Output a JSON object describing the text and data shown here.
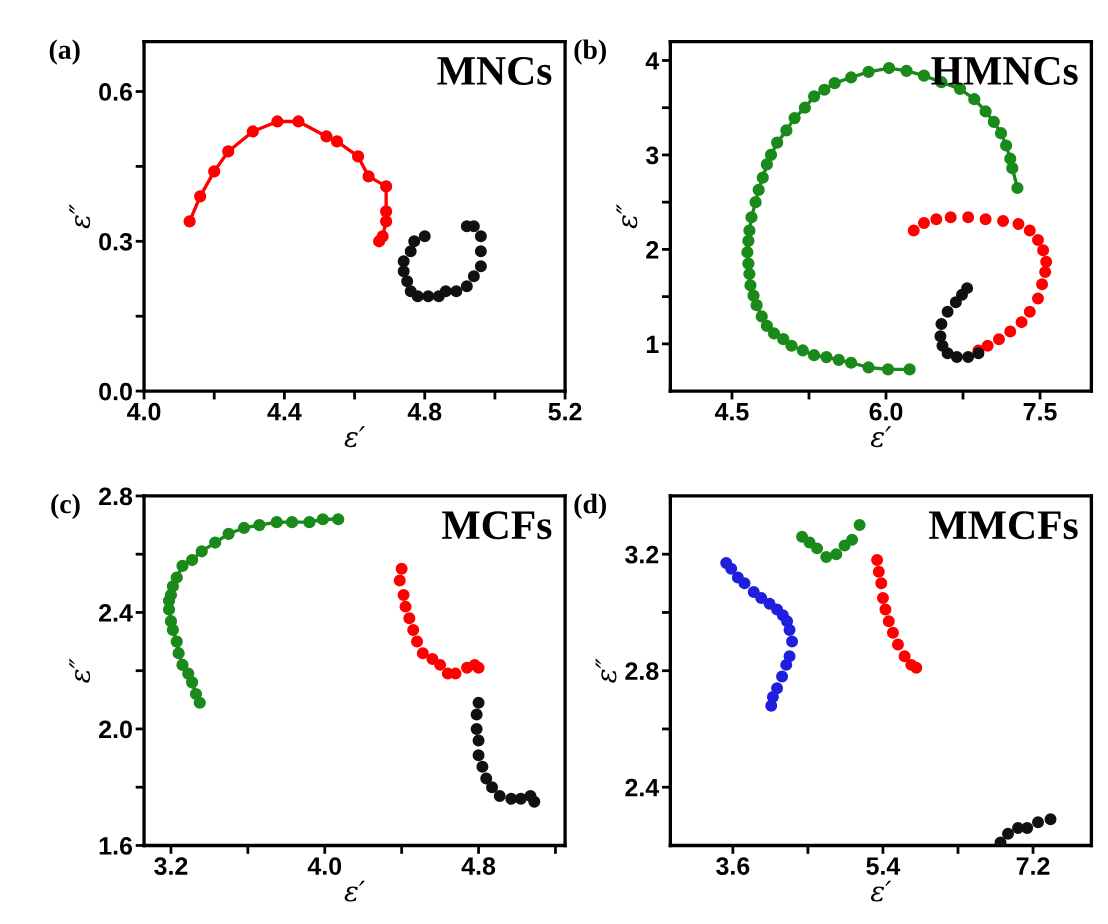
{
  "chart_data": [
    {
      "type": "line",
      "title": "MNCs",
      "annotations": [
        "(a)"
      ],
      "xlabel": "ε′",
      "ylabel": "ε″",
      "marker": "circle",
      "line_style": "solid",
      "grid": false,
      "legend": false,
      "xlim": [
        4.0,
        5.2
      ],
      "ylim": [
        0.0,
        0.7
      ],
      "xticks": [
        {
          "value": 4.0,
          "label": "4.0"
        },
        {
          "value": 4.2,
          "label": null
        },
        {
          "value": 4.4,
          "label": "4.4"
        },
        {
          "value": 4.6,
          "label": null
        },
        {
          "value": 4.8,
          "label": "4.8"
        },
        {
          "value": 5.0,
          "label": null
        },
        {
          "value": 5.2,
          "label": "5.2"
        }
      ],
      "yticks": [
        {
          "value": 0.0,
          "label": "0.0"
        },
        {
          "value": 0.15,
          "label": null
        },
        {
          "value": 0.3,
          "label": "0.3"
        },
        {
          "value": 0.45,
          "label": null
        },
        {
          "value": 0.6,
          "label": "0.6"
        }
      ],
      "series": [
        {
          "color": "#ff0000",
          "x": [
            4.13,
            4.16,
            4.2,
            4.24,
            4.31,
            4.38,
            4.44,
            4.52,
            4.55,
            4.61,
            4.64,
            4.69,
            4.69,
            4.69,
            4.68,
            4.67
          ],
          "values": [
            0.34,
            0.39,
            0.44,
            0.48,
            0.52,
            0.54,
            0.54,
            0.51,
            0.5,
            0.47,
            0.43,
            0.41,
            0.36,
            0.34,
            0.31,
            0.3
          ]
        },
        {
          "type": "scatter",
          "color": "#111111",
          "x": [
            4.8,
            4.77,
            4.76,
            4.74,
            4.74,
            4.75,
            4.76,
            4.78,
            4.81,
            4.84,
            4.86,
            4.89,
            4.92,
            4.94,
            4.96,
            4.96,
            4.96,
            4.94,
            4.92
          ],
          "values": [
            0.31,
            0.3,
            0.28,
            0.26,
            0.24,
            0.22,
            0.2,
            0.19,
            0.19,
            0.19,
            0.2,
            0.2,
            0.21,
            0.23,
            0.25,
            0.28,
            0.31,
            0.33,
            0.33
          ]
        }
      ]
    },
    {
      "type": "line",
      "title": "HMNCs",
      "annotations": [
        "(b)"
      ],
      "xlabel": "ε′",
      "ylabel": "ε″",
      "marker": "circle",
      "line_style": "solid",
      "grid": false,
      "legend": false,
      "xlim": [
        3.9,
        8.0
      ],
      "ylim": [
        0.5,
        4.2
      ],
      "xticks": [
        {
          "value": 4.5,
          "label": "4.5"
        },
        {
          "value": 5.25,
          "label": null
        },
        {
          "value": 6.0,
          "label": "6.0"
        },
        {
          "value": 6.75,
          "label": null
        },
        {
          "value": 7.5,
          "label": "7.5"
        }
      ],
      "yticks": [
        {
          "value": 1,
          "label": "1"
        },
        {
          "value": 1.5,
          "label": null
        },
        {
          "value": 2,
          "label": "2"
        },
        {
          "value": 2.5,
          "label": null
        },
        {
          "value": 3,
          "label": "3"
        },
        {
          "value": 3.5,
          "label": null
        },
        {
          "value": 4,
          "label": "4"
        }
      ],
      "series": [
        {
          "color": "#1a8a1a",
          "x": [
            6.23,
            6.02,
            5.83,
            5.66,
            5.54,
            5.42,
            5.3,
            5.19,
            5.08,
            5.0,
            4.91,
            4.84,
            4.79,
            4.74,
            4.71,
            4.68,
            4.67,
            4.66,
            4.65,
            4.66,
            4.67,
            4.69,
            4.73,
            4.76,
            4.8,
            4.84,
            4.88,
            4.94,
            5.03,
            5.11,
            5.21,
            5.3,
            5.4,
            5.5,
            5.66,
            5.83,
            6.03,
            6.2,
            6.37,
            6.54,
            6.72,
            6.86,
            6.97,
            7.05,
            7.12,
            7.17,
            7.21,
            7.23,
            7.28
          ],
          "values": [
            0.73,
            0.73,
            0.75,
            0.8,
            0.83,
            0.86,
            0.88,
            0.93,
            0.98,
            1.05,
            1.11,
            1.19,
            1.29,
            1.41,
            1.51,
            1.62,
            1.74,
            1.85,
            1.97,
            2.09,
            2.2,
            2.34,
            2.5,
            2.63,
            2.76,
            2.9,
            3.0,
            3.13,
            3.26,
            3.39,
            3.5,
            3.62,
            3.69,
            3.76,
            3.82,
            3.88,
            3.92,
            3.89,
            3.84,
            3.77,
            3.7,
            3.59,
            3.46,
            3.35,
            3.23,
            3.1,
            2.96,
            2.86,
            2.65
          ]
        },
        {
          "type": "scatter",
          "color": "#ff0000",
          "x": [
            6.27,
            6.37,
            6.49,
            6.63,
            6.8,
            6.97,
            7.14,
            7.29,
            7.4,
            7.48,
            7.53,
            7.56,
            7.55,
            7.52,
            7.48,
            7.4,
            7.32,
            7.21,
            7.1,
            6.99,
            6.9
          ],
          "values": [
            2.2,
            2.28,
            2.32,
            2.34,
            2.34,
            2.32,
            2.3,
            2.27,
            2.2,
            2.1,
            1.99,
            1.87,
            1.76,
            1.63,
            1.48,
            1.34,
            1.23,
            1.13,
            1.05,
            0.98,
            0.93
          ]
        },
        {
          "type": "scatter",
          "color": "#111111",
          "x": [
            6.79,
            6.74,
            6.68,
            6.6,
            6.54,
            6.53,
            6.55,
            6.6,
            6.69,
            6.8,
            6.9
          ],
          "values": [
            1.59,
            1.52,
            1.44,
            1.34,
            1.21,
            1.08,
            0.98,
            0.9,
            0.86,
            0.86,
            0.9
          ]
        }
      ]
    },
    {
      "type": "line",
      "title": "MCFs",
      "annotations": [
        "(c)"
      ],
      "xlabel": "ε′",
      "ylabel": "ε″",
      "marker": "circle",
      "line_style": "solid",
      "grid": false,
      "legend": false,
      "xlim": [
        3.06,
        5.25
      ],
      "ylim": [
        1.6,
        2.8
      ],
      "xticks": [
        {
          "value": 3.2,
          "label": "3.2"
        },
        {
          "value": 3.6,
          "label": null
        },
        {
          "value": 4.0,
          "label": "4.0"
        },
        {
          "value": 4.4,
          "label": null
        },
        {
          "value": 4.8,
          "label": "4.8"
        },
        {
          "value": 5.2,
          "label": null
        }
      ],
      "yticks": [
        {
          "value": 1.6,
          "label": "1.6"
        },
        {
          "value": 1.8,
          "label": null
        },
        {
          "value": 2.0,
          "label": "2.0"
        },
        {
          "value": 2.2,
          "label": null
        },
        {
          "value": 2.4,
          "label": "2.4"
        },
        {
          "value": 2.6,
          "label": null
        },
        {
          "value": 2.8,
          "label": "2.8"
        }
      ],
      "series": [
        {
          "color": "#1a8a1a",
          "x": [
            3.35,
            3.33,
            3.31,
            3.29,
            3.26,
            3.24,
            3.23,
            3.21,
            3.2,
            3.19,
            3.19,
            3.2,
            3.21,
            3.23,
            3.26,
            3.31,
            3.36,
            3.43,
            3.5,
            3.58,
            3.66,
            3.75,
            3.83,
            3.92,
            3.99,
            4.07
          ],
          "values": [
            2.09,
            2.12,
            2.16,
            2.19,
            2.22,
            2.26,
            2.3,
            2.34,
            2.37,
            2.41,
            2.44,
            2.46,
            2.49,
            2.52,
            2.56,
            2.58,
            2.61,
            2.64,
            2.67,
            2.69,
            2.7,
            2.71,
            2.71,
            2.71,
            2.72,
            2.72
          ]
        },
        {
          "type": "scatter",
          "color": "#ff0000",
          "x": [
            4.4,
            4.39,
            4.41,
            4.42,
            4.44,
            4.46,
            4.48,
            4.51,
            4.56,
            4.6,
            4.64,
            4.68,
            4.74,
            4.78,
            4.8
          ],
          "values": [
            2.55,
            2.51,
            2.46,
            2.42,
            2.38,
            2.34,
            2.3,
            2.26,
            2.24,
            2.22,
            2.19,
            2.19,
            2.21,
            2.22,
            2.21
          ]
        },
        {
          "type": "scatter",
          "color": "#111111",
          "x": [
            4.8,
            4.79,
            4.79,
            4.8,
            4.8,
            4.82,
            4.84,
            4.87,
            4.91,
            4.97,
            5.02,
            5.07,
            5.09
          ],
          "values": [
            2.09,
            2.05,
            2.0,
            1.96,
            1.91,
            1.87,
            1.83,
            1.8,
            1.77,
            1.76,
            1.76,
            1.77,
            1.75
          ]
        }
      ]
    },
    {
      "type": "line",
      "title": "MMCFs",
      "annotations": [
        "(d)"
      ],
      "xlabel": "ε′",
      "ylabel": "ε″",
      "marker": "circle",
      "line_style": "solid",
      "grid": false,
      "legend": false,
      "xlim": [
        2.85,
        7.9
      ],
      "ylim": [
        2.2,
        3.4
      ],
      "xticks": [
        {
          "value": 3.6,
          "label": "3.6"
        },
        {
          "value": 4.5,
          "label": null
        },
        {
          "value": 5.4,
          "label": "5.4"
        },
        {
          "value": 6.3,
          "label": null
        },
        {
          "value": 7.2,
          "label": "7.2"
        }
      ],
      "yticks": [
        {
          "value": 2.4,
          "label": "2.4"
        },
        {
          "value": 2.6,
          "label": null
        },
        {
          "value": 2.8,
          "label": "2.8"
        },
        {
          "value": 3.0,
          "label": null
        },
        {
          "value": 3.2,
          "label": "3.2"
        }
      ],
      "series": [
        {
          "type": "scatter",
          "color": "#1f1fdd",
          "x": [
            3.52,
            3.58,
            3.66,
            3.74,
            3.85,
            3.94,
            4.04,
            4.13,
            4.2,
            4.25,
            4.28,
            4.31,
            4.28,
            4.24,
            4.19,
            4.13,
            4.08,
            4.06
          ],
          "values": [
            3.17,
            3.15,
            3.12,
            3.1,
            3.07,
            3.05,
            3.03,
            3.01,
            2.99,
            2.97,
            2.94,
            2.9,
            2.85,
            2.82,
            2.78,
            2.74,
            2.71,
            2.68
          ]
        },
        {
          "type": "scatter",
          "color": "#1a8a1a",
          "x": [
            4.43,
            4.52,
            4.61,
            4.72,
            4.84,
            4.94,
            5.03,
            5.12
          ],
          "values": [
            3.26,
            3.24,
            3.22,
            3.19,
            3.2,
            3.23,
            3.25,
            3.3
          ]
        },
        {
          "type": "scatter",
          "color": "#ff0000",
          "x": [
            5.33,
            5.35,
            5.38,
            5.4,
            5.43,
            5.47,
            5.52,
            5.58,
            5.66,
            5.74,
            5.8
          ],
          "values": [
            3.18,
            3.14,
            3.1,
            3.05,
            3.01,
            2.97,
            2.93,
            2.89,
            2.85,
            2.82,
            2.81
          ]
        },
        {
          "type": "scatter",
          "color": "#111111",
          "x": [
            6.81,
            6.9,
            7.02,
            7.13,
            7.26,
            7.41
          ],
          "values": [
            2.21,
            2.24,
            2.26,
            2.26,
            2.28,
            2.29
          ]
        }
      ]
    }
  ]
}
